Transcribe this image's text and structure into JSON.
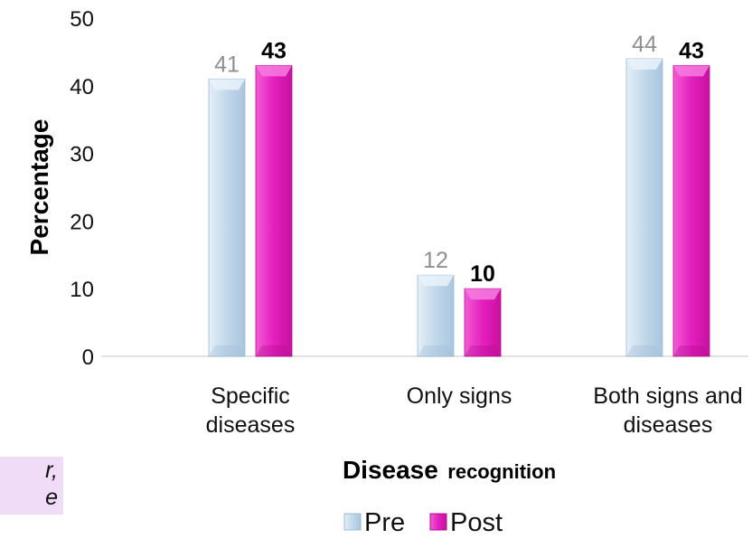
{
  "chart_data": {
    "type": "bar",
    "title": "",
    "xlabel_part1": "Disease",
    "xlabel_part2": "recognition",
    "ylabel": "Percentage",
    "ylim": [
      0,
      50
    ],
    "yticks": [
      0,
      10,
      20,
      30,
      40,
      50
    ],
    "categories": [
      [
        "Specific",
        "diseases"
      ],
      [
        "Only signs"
      ],
      [
        "Both signs and",
        "diseases"
      ]
    ],
    "series": [
      {
        "name": "Pre",
        "values": [
          41,
          12,
          44
        ],
        "color": "#cfe2f1"
      },
      {
        "name": "Post",
        "values": [
          43,
          10,
          43
        ],
        "color": "#ee2dc7"
      }
    ],
    "legend_position": "bottom",
    "grid": false
  },
  "side_note": {
    "line1": "r,",
    "line2": "e"
  }
}
